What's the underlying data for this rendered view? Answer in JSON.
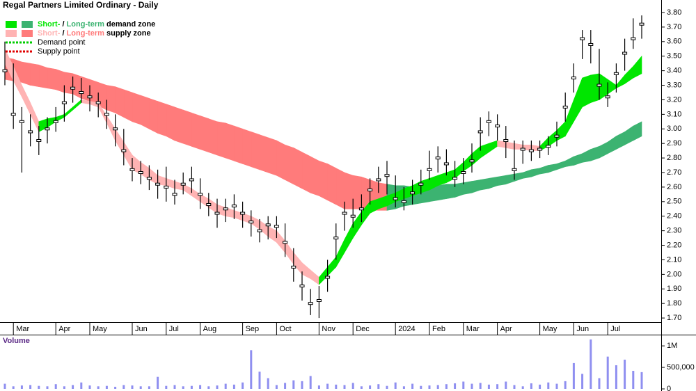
{
  "chart_data": [
    {
      "type": "ohlc",
      "title": "Regal Partners Limited Ordinary - Daily",
      "categories": [
        null,
        "Mar",
        null,
        null,
        null,
        null,
        "Apr",
        null,
        null,
        null,
        "May",
        null,
        null,
        null,
        null,
        "Jun",
        null,
        null,
        null,
        "Jul",
        null,
        null,
        null,
        "Aug",
        null,
        null,
        null,
        null,
        "Sep",
        null,
        null,
        null,
        "Oct",
        null,
        null,
        null,
        null,
        "Nov",
        null,
        null,
        null,
        "Dec",
        null,
        null,
        null,
        null,
        "2024",
        null,
        null,
        null,
        "Feb",
        null,
        null,
        null,
        "Mar",
        null,
        null,
        null,
        "Apr",
        null,
        null,
        null,
        null,
        "May",
        null,
        null,
        null,
        "Jun",
        null,
        null,
        null,
        "Jul",
        null,
        null,
        null,
        null
      ],
      "high": [
        3.6,
        3.45,
        3.15,
        3.1,
        3.02,
        3.08,
        3.15,
        3.3,
        3.36,
        3.35,
        3.3,
        3.25,
        3.2,
        3.1,
        3.0,
        2.8,
        2.78,
        2.75,
        2.72,
        2.74,
        2.65,
        2.7,
        2.74,
        2.66,
        2.56,
        2.52,
        2.52,
        2.55,
        2.5,
        2.44,
        2.38,
        2.4,
        2.4,
        2.35,
        2.18,
        2.02,
        1.9,
        1.92,
        2.1,
        2.35,
        2.5,
        2.52,
        2.55,
        2.66,
        2.74,
        2.78,
        2.68,
        2.6,
        2.65,
        2.72,
        2.85,
        2.88,
        2.86,
        2.78,
        2.8,
        2.9,
        3.08,
        3.12,
        3.1,
        3.02,
        2.92,
        2.92,
        2.92,
        2.92,
        2.95,
        3.05,
        3.25,
        3.45,
        3.68,
        3.68,
        3.55,
        3.32,
        3.45,
        3.62,
        3.76,
        3.78
      ],
      "low": [
        3.3,
        3.0,
        2.7,
        2.88,
        2.82,
        2.9,
        2.98,
        3.05,
        3.18,
        3.18,
        3.12,
        3.08,
        3.0,
        2.88,
        2.75,
        2.64,
        2.62,
        2.58,
        2.52,
        2.5,
        2.48,
        2.55,
        2.56,
        2.45,
        2.4,
        2.32,
        2.36,
        2.38,
        2.32,
        2.26,
        2.22,
        2.24,
        2.25,
        2.12,
        1.95,
        1.82,
        1.72,
        1.7,
        1.88,
        2.1,
        2.3,
        2.32,
        2.36,
        2.48,
        2.56,
        2.55,
        2.46,
        2.44,
        2.48,
        2.55,
        2.65,
        2.7,
        2.68,
        2.6,
        2.62,
        2.7,
        2.85,
        2.95,
        2.92,
        2.8,
        2.65,
        2.76,
        2.78,
        2.8,
        2.82,
        2.88,
        3.05,
        3.25,
        3.48,
        3.45,
        3.2,
        3.15,
        3.25,
        3.4,
        3.55,
        3.62
      ],
      "close": [
        3.4,
        3.1,
        3.05,
        2.98,
        2.92,
        3.0,
        3.05,
        3.18,
        3.28,
        3.25,
        3.22,
        3.18,
        3.1,
        3.0,
        2.85,
        2.72,
        2.7,
        2.66,
        2.62,
        2.6,
        2.55,
        2.62,
        2.65,
        2.55,
        2.48,
        2.42,
        2.45,
        2.47,
        2.42,
        2.36,
        2.3,
        2.34,
        2.33,
        2.22,
        2.05,
        1.92,
        1.8,
        1.82,
        1.98,
        2.25,
        2.42,
        2.4,
        2.45,
        2.58,
        2.65,
        2.68,
        2.52,
        2.5,
        2.56,
        2.62,
        2.72,
        2.8,
        2.76,
        2.66,
        2.7,
        2.78,
        2.98,
        3.05,
        3.02,
        2.92,
        2.72,
        2.86,
        2.85,
        2.86,
        2.88,
        2.95,
        3.15,
        3.35,
        3.62,
        3.58,
        3.3,
        3.22,
        3.38,
        3.52,
        3.62,
        3.72
      ],
      "color": "#000000",
      "long_zone": {
        "demand_color": "#3cb371",
        "supply_color": "#ff7b7b",
        "upper": [
          3.49,
          3.48,
          3.46,
          3.45,
          3.44,
          3.42,
          3.41,
          3.39,
          3.38,
          3.36,
          3.34,
          3.32,
          3.3,
          3.29,
          3.27,
          3.25,
          3.23,
          3.21,
          3.19,
          3.17,
          3.15,
          3.13,
          3.11,
          3.09,
          3.07,
          3.05,
          3.04,
          3.02,
          3.0,
          2.98,
          2.96,
          2.94,
          2.92,
          2.89,
          2.87,
          2.84,
          2.81,
          2.78,
          2.76,
          2.73,
          2.7,
          2.68,
          2.67,
          2.65,
          2.63,
          2.62,
          2.61,
          2.61,
          2.6,
          2.6,
          2.61,
          2.61,
          2.62,
          2.62,
          2.63,
          2.64,
          2.65,
          2.66,
          2.67,
          2.68,
          2.69,
          2.7,
          2.72,
          2.73,
          2.75,
          2.76,
          2.78,
          2.81,
          2.83,
          2.86,
          2.88,
          2.91,
          2.95,
          2.98,
          3.02,
          3.05
        ],
        "lower": [
          3.34,
          3.33,
          3.32,
          3.3,
          3.29,
          3.28,
          3.27,
          3.25,
          3.24,
          3.21,
          3.19,
          3.16,
          3.13,
          3.11,
          3.08,
          3.05,
          3.03,
          3.0,
          2.97,
          2.95,
          2.92,
          2.9,
          2.88,
          2.86,
          2.84,
          2.82,
          2.8,
          2.78,
          2.76,
          2.74,
          2.72,
          2.7,
          2.68,
          2.65,
          2.62,
          2.59,
          2.56,
          2.54,
          2.51,
          2.48,
          2.45,
          2.45,
          2.45,
          2.44,
          2.44,
          2.44,
          2.45,
          2.47,
          2.48,
          2.49,
          2.5,
          2.51,
          2.52,
          2.53,
          2.55,
          2.56,
          2.58,
          2.59,
          2.61,
          2.62,
          2.64,
          2.66,
          2.67,
          2.69,
          2.7,
          2.72,
          2.74,
          2.75,
          2.77,
          2.78,
          2.8,
          2.83,
          2.86,
          2.89,
          2.92,
          2.95
        ]
      },
      "short_zone": {
        "demand_color": "#00e600",
        "supply_color": "#ffb3b3",
        "upper": [
          3.55,
          3.43,
          3.3,
          3.18,
          3.05,
          3.07,
          3.08,
          3.1,
          3.15,
          3.2,
          3.19,
          3.18,
          3.09,
          3.0,
          2.91,
          2.82,
          2.77,
          2.73,
          2.68,
          2.66,
          2.64,
          2.62,
          2.59,
          2.55,
          2.52,
          2.48,
          2.46,
          2.44,
          2.42,
          2.4,
          2.37,
          2.33,
          2.3,
          2.23,
          2.15,
          2.08,
          2.03,
          1.98,
          2.05,
          2.12,
          2.24,
          2.35,
          2.43,
          2.5,
          2.52,
          2.54,
          2.56,
          2.59,
          2.61,
          2.64,
          2.66,
          2.68,
          2.7,
          2.72,
          2.77,
          2.83,
          2.88,
          2.9,
          2.92,
          2.91,
          2.9,
          2.89,
          2.89,
          2.88,
          2.94,
          2.99,
          3.05,
          3.2,
          3.35,
          3.37,
          3.38,
          3.34,
          3.3,
          3.37,
          3.43,
          3.5
        ],
        "lower": [
          3.45,
          3.33,
          3.22,
          3.1,
          2.98,
          3.01,
          3.05,
          3.08,
          3.13,
          3.18,
          3.17,
          3.15,
          3.04,
          2.92,
          2.82,
          2.72,
          2.69,
          2.65,
          2.62,
          2.61,
          2.59,
          2.58,
          2.54,
          2.5,
          2.46,
          2.42,
          2.4,
          2.39,
          2.37,
          2.35,
          2.31,
          2.26,
          2.22,
          2.15,
          2.07,
          2.0,
          1.97,
          1.93,
          1.99,
          2.05,
          2.15,
          2.25,
          2.34,
          2.42,
          2.45,
          2.47,
          2.5,
          2.52,
          2.54,
          2.56,
          2.58,
          2.61,
          2.63,
          2.66,
          2.71,
          2.75,
          2.8,
          2.84,
          2.88,
          2.87,
          2.86,
          2.86,
          2.85,
          2.85,
          2.88,
          2.92,
          2.95,
          3.05,
          3.15,
          3.18,
          3.2,
          3.24,
          3.28,
          3.31,
          3.35,
          3.38
        ]
      },
      "legend": [
        {
          "parts": [
            "Short-",
            " / ",
            "Long-term",
            " demand zone"
          ]
        },
        {
          "parts": [
            "Short-",
            " / ",
            "Long-term",
            " supply zone"
          ]
        },
        {
          "parts": [
            "Demand point"
          ],
          "color": "#00cc00"
        },
        {
          "parts": [
            "Supply point"
          ],
          "color": "#e00000"
        }
      ],
      "ylim": [
        1.6,
        3.886
      ],
      "yticks": [
        {
          "value": 1.7,
          "label": "1.70"
        },
        {
          "value": 1.8,
          "label": "1.80"
        },
        {
          "value": 1.9,
          "label": "1.90"
        },
        {
          "value": 2.0,
          "label": "2.00"
        },
        {
          "value": 2.1,
          "label": "2.10"
        },
        {
          "value": 2.2,
          "label": "2.20"
        },
        {
          "value": 2.3,
          "label": "2.30"
        },
        {
          "value": 2.4,
          "label": "2.40"
        },
        {
          "value": 2.5,
          "label": "2.50"
        },
        {
          "value": 2.6,
          "label": "2.60"
        },
        {
          "value": 2.7,
          "label": "2.70"
        },
        {
          "value": 2.8,
          "label": "2.80"
        },
        {
          "value": 2.9,
          "label": "2.90"
        },
        {
          "value": 3.0,
          "label": "3.00"
        },
        {
          "value": 3.1,
          "label": "3.10"
        },
        {
          "value": 3.2,
          "label": "3.20"
        },
        {
          "value": 3.3,
          "label": "3.30"
        },
        {
          "value": 3.4,
          "label": "3.40"
        },
        {
          "value": 3.5,
          "label": "3.50"
        },
        {
          "value": 3.6,
          "label": "3.60"
        },
        {
          "value": 3.7,
          "label": "3.70"
        },
        {
          "value": 3.8,
          "label": "3.80"
        }
      ]
    },
    {
      "type": "bar",
      "title": "Volume",
      "color": "#8f8ff0",
      "values": [
        120000,
        60000,
        80000,
        90000,
        70000,
        60000,
        110000,
        60000,
        90000,
        150000,
        80000,
        60000,
        70000,
        50000,
        90000,
        80000,
        60000,
        60000,
        280000,
        70000,
        90000,
        60000,
        70000,
        90000,
        60000,
        80000,
        120000,
        100000,
        150000,
        900000,
        400000,
        250000,
        90000,
        140000,
        200000,
        180000,
        300000,
        80000,
        120000,
        100000,
        90000,
        140000,
        60000,
        80000,
        110000,
        70000,
        150000,
        60000,
        120000,
        70000,
        80000,
        90000,
        110000,
        130000,
        170000,
        120000,
        140000,
        100000,
        110000,
        170000,
        90000,
        60000,
        130000,
        100000,
        150000,
        120000,
        180000,
        600000,
        350000,
        1150000,
        250000,
        750000,
        550000,
        680000,
        420000,
        390000
      ],
      "ylim": [
        0,
        1180000
      ],
      "yticks": [
        0,
        {
          "value": 500000,
          "label": "500,000"
        },
        {
          "value": 1000000,
          "label": "1M"
        }
      ]
    }
  ]
}
